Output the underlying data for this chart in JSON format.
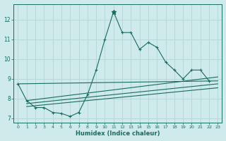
{
  "xlabel": "Humidex (Indice chaleur)",
  "background_color": "#ceeaea",
  "grid_color": "#b8d8d8",
  "line_color": "#1a6b60",
  "xlim": [
    -0.5,
    23.5
  ],
  "ylim": [
    6.8,
    12.8
  ],
  "x_main": [
    0,
    1,
    2,
    3,
    4,
    5,
    6,
    7,
    8,
    9,
    10,
    11,
    12,
    13,
    14,
    15,
    16,
    17,
    18,
    19,
    20,
    21,
    22
  ],
  "y_main": [
    8.75,
    7.9,
    7.55,
    7.55,
    7.3,
    7.25,
    7.1,
    7.3,
    8.2,
    9.45,
    11.0,
    12.4,
    11.35,
    11.35,
    10.5,
    10.85,
    10.6,
    9.85,
    9.45,
    9.0,
    9.45,
    9.45,
    8.9
  ],
  "fan_lines": [
    {
      "x": [
        0,
        23
      ],
      "y": [
        8.75,
        8.9
      ]
    },
    {
      "x": [
        1,
        23
      ],
      "y": [
        7.9,
        9.1
      ]
    },
    {
      "x": [
        1,
        23
      ],
      "y": [
        7.75,
        8.75
      ]
    },
    {
      "x": [
        1,
        23
      ],
      "y": [
        7.6,
        8.55
      ]
    }
  ],
  "yticks": [
    7,
    8,
    9,
    10,
    11,
    12
  ],
  "xticks": [
    0,
    1,
    2,
    3,
    4,
    5,
    6,
    7,
    8,
    9,
    10,
    11,
    12,
    13,
    14,
    15,
    16,
    17,
    18,
    19,
    20,
    21,
    22,
    23
  ]
}
